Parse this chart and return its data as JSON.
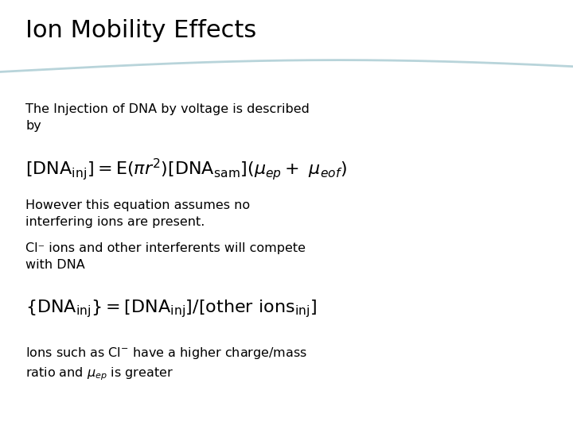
{
  "title": "Ion Mobility Effects",
  "background_color": "#ffffff",
  "title_color": "#000000",
  "title_fontsize": 22,
  "body_fontsize": 11.5,
  "equation_fontsize": 16,
  "wave_color": "#b8d4da",
  "text_color": "#000000",
  "line1": "The Injection of DNA by voltage is described\nby",
  "line3": "However this equation assumes no\ninterfering ions are present.",
  "line4": "Cl⁻ ions and other interferents will compete\nwith DNA"
}
